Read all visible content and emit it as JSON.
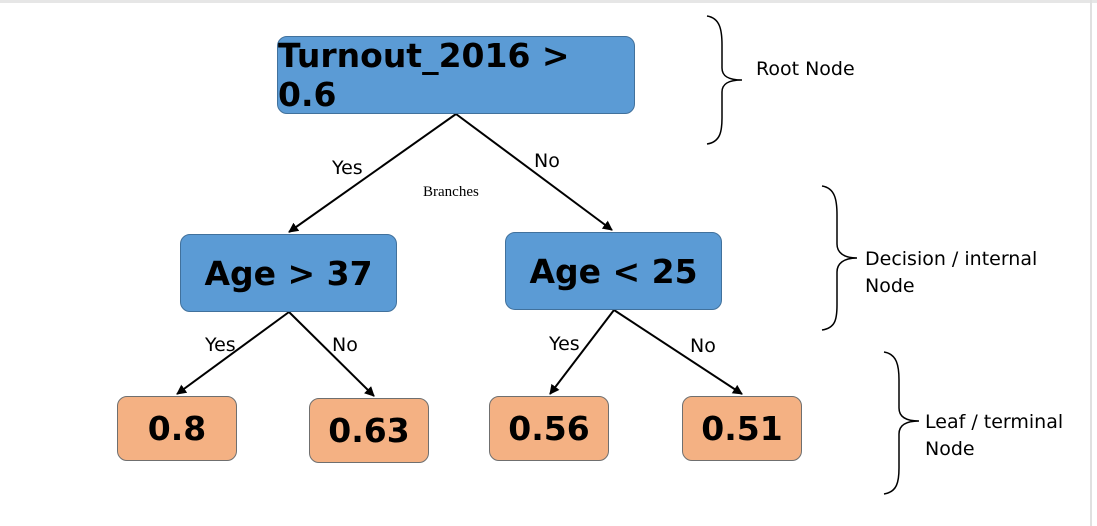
{
  "tree": {
    "root": {
      "label": "Turnout_2016 > 0.6",
      "color": "#5b9bd5"
    },
    "internal": [
      {
        "label": "Age > 37",
        "color": "#5b9bd5"
      },
      {
        "label": "Age < 25",
        "color": "#5b9bd5"
      }
    ],
    "leaves": [
      {
        "label": "0.8",
        "color": "#f4b183"
      },
      {
        "label": "0.63",
        "color": "#f4b183"
      },
      {
        "label": "0.56",
        "color": "#f4b183"
      },
      {
        "label": "0.51",
        "color": "#f4b183"
      }
    ],
    "edges": {
      "root_left": "Yes",
      "root_right": "No",
      "age1_left": "Yes",
      "age1_right": "No",
      "age2_left": "Yes",
      "age2_right": "No"
    },
    "branches_label": "Branches"
  },
  "annotations": {
    "root": "Root Node",
    "internal_line1": "Decision / internal",
    "internal_line2": "Node",
    "leaf_line1": "Leaf / terminal",
    "leaf_line2": "Node"
  }
}
